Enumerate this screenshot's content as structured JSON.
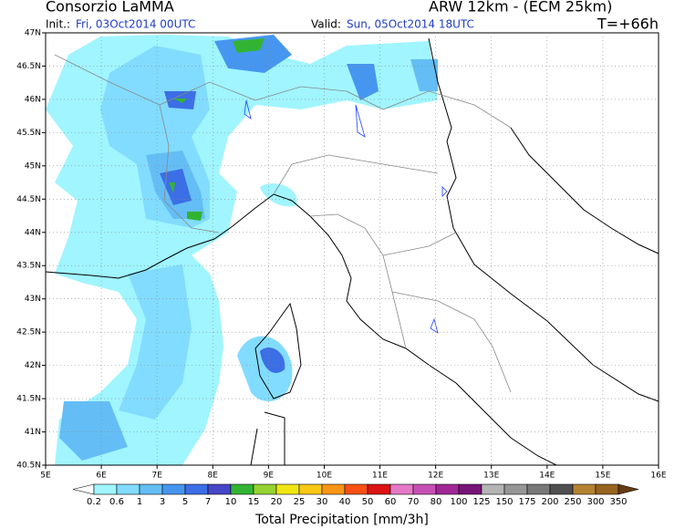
{
  "header": {
    "title": "Consorzio LaMMA",
    "model": "ARW 12km - (ECM 25km)",
    "init_label": "Init.:",
    "init": "Fri, 03Oct2014 00UTC",
    "valid_label": "Valid:",
    "valid": "Sun, 05Oct2014 18UTC",
    "lead": "T=+66h"
  },
  "map": {
    "lon_labels": [
      "5E",
      "6E",
      "7E",
      "8E",
      "9E",
      "10E",
      "11E",
      "12E",
      "13E",
      "14E",
      "15E",
      "16E"
    ],
    "lat_labels": [
      "47N",
      "46.5N",
      "46N",
      "45.5N",
      "45N",
      "44.5N",
      "44N",
      "43.5N",
      "43N",
      "42.5N",
      "42N",
      "41.5N",
      "41N",
      "40.5N"
    ]
  },
  "colorbar": {
    "labels": [
      "0.2",
      "0.6",
      "1",
      "3",
      "5",
      "7",
      "10",
      "15",
      "20",
      "25",
      "30",
      "40",
      "50",
      "60",
      "70",
      "80",
      "100",
      "125",
      "150",
      "175",
      "200",
      "250",
      "300",
      "350"
    ],
    "colors": [
      "#ffffff",
      "#a0f5ff",
      "#82dcff",
      "#64bef5",
      "#4696f0",
      "#3c6ee6",
      "#4646c8",
      "#32b432",
      "#96d232",
      "#f0e614",
      "#fac814",
      "#fa9614",
      "#fa5014",
      "#dc1414",
      "#e678c8",
      "#c850b4",
      "#a02896",
      "#781478",
      "#b4b4b4",
      "#969696",
      "#787878",
      "#505050",
      "#b48232",
      "#96641e",
      "#643c14"
    ],
    "title": "Total Precipitation [mm/3h]"
  }
}
